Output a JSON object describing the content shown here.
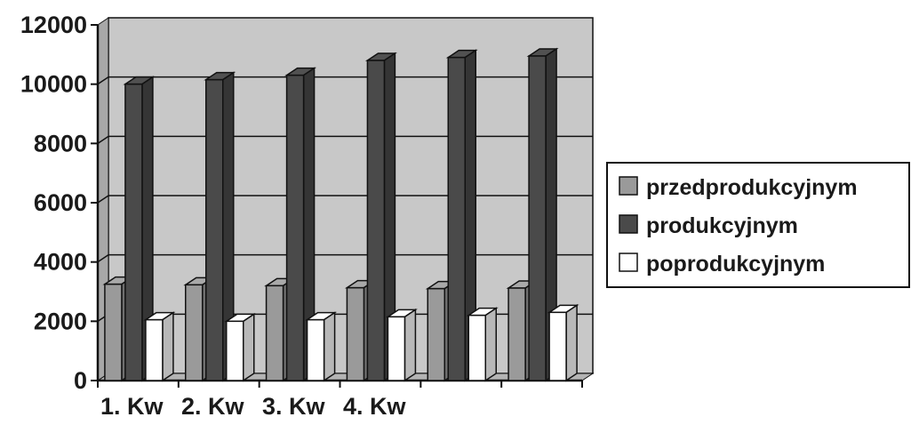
{
  "chart_data": {
    "type": "bar",
    "title": "",
    "xlabel": "",
    "ylabel": "",
    "ylim": [
      0,
      12000
    ],
    "yticks": [
      0,
      2000,
      4000,
      6000,
      8000,
      10000,
      12000
    ],
    "ytick_labels": [
      "0",
      "2000",
      "4000",
      "6000",
      "8000",
      "10000",
      "12000"
    ],
    "categories": [
      "1. Kw",
      "2. Kw",
      "3. Kw",
      "4. Kw",
      "",
      ""
    ],
    "series": [
      {
        "name": "przedprodukcyjnym",
        "color": "#9a9a9a",
        "values": [
          3250,
          3230,
          3200,
          3130,
          3100,
          3120
        ]
      },
      {
        "name": "produkcyjnym",
        "color": "#4a4a4a",
        "values": [
          10000,
          10150,
          10300,
          10800,
          10900,
          10950
        ]
      },
      {
        "name": "poprodukcyjnym",
        "color": "#ffffff",
        "values": [
          2050,
          2000,
          2050,
          2150,
          2200,
          2300
        ]
      }
    ],
    "grid": true,
    "legend_position": "right",
    "plot_background": "#c8c8c8"
  }
}
